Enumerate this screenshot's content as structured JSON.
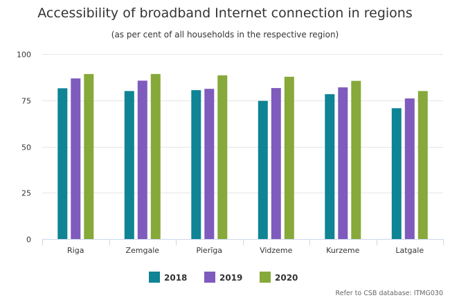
{
  "chart_data": {
    "type": "bar",
    "title": "Accessibility of broadband Internet connection in regions",
    "subtitle": "(as per cent of all households in the respective region)",
    "xlabel": "",
    "ylabel": "",
    "categories": [
      "Riga",
      "Zemgale",
      "Pierīga",
      "Vidzeme",
      "Kurzeme",
      "Latgale"
    ],
    "series": [
      {
        "name": "2018",
        "color": "#0e8494",
        "values": [
          81.5,
          80.0,
          80.5,
          74.7,
          78.3,
          70.7
        ]
      },
      {
        "name": "2019",
        "color": "#7e5bbd",
        "values": [
          86.8,
          85.6,
          81.2,
          81.6,
          82.0,
          76.0
        ]
      },
      {
        "name": "2020",
        "color": "#86a93a",
        "values": [
          89.2,
          89.2,
          88.5,
          87.7,
          85.5,
          80.0
        ]
      }
    ],
    "ylim": [
      0,
      100
    ],
    "yticks": [
      0,
      25,
      50,
      75,
      100
    ],
    "grid": true,
    "legend_position": "bottom-center",
    "credit": "Refer to CSB database: ITMG030"
  }
}
